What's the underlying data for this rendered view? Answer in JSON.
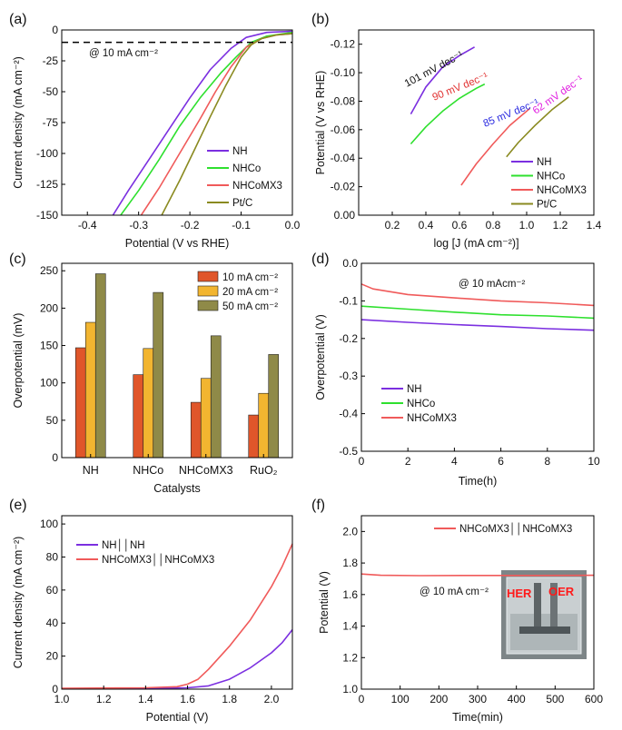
{
  "chart_data": [
    {
      "panel": "(a)",
      "type": "line",
      "xlabel": "Potential (V vs RHE)",
      "ylabel": "Current density (mA cm⁻²)",
      "xlim": [
        -0.45,
        0.0
      ],
      "ylim": [
        -150,
        0
      ],
      "xticks": [
        -0.4,
        -0.3,
        -0.2,
        -0.1,
        0.0
      ],
      "xtick_labels": [
        "-0.4",
        "-0.3",
        "-0.2",
        "-0.1",
        "0.0"
      ],
      "yticks": [
        -25,
        -50,
        -75,
        -100,
        -125,
        -150
      ],
      "ytick_labels": [
        "-25",
        "-50",
        "-75",
        "-100",
        "-125",
        "-150"
      ],
      "annotation": "@ 10 mA cm⁻²",
      "reference_line": {
        "y": -10,
        "style": "dashed",
        "color": "#000000"
      },
      "legend_position": "bottom-right",
      "series": [
        {
          "name": "NH",
          "color": "#7b2fe0",
          "points": [
            [
              -0.35,
              -150
            ],
            [
              -0.32,
              -130
            ],
            [
              -0.28,
              -105
            ],
            [
              -0.24,
              -80
            ],
            [
              -0.2,
              -55
            ],
            [
              -0.16,
              -32
            ],
            [
              -0.12,
              -15
            ],
            [
              -0.09,
              -6
            ],
            [
              -0.05,
              -2
            ],
            [
              0.0,
              -1
            ]
          ]
        },
        {
          "name": "NHCo",
          "color": "#2ee02e",
          "points": [
            [
              -0.335,
              -150
            ],
            [
              -0.3,
              -130
            ],
            [
              -0.26,
              -105
            ],
            [
              -0.22,
              -78
            ],
            [
              -0.18,
              -55
            ],
            [
              -0.14,
              -35
            ],
            [
              -0.11,
              -22
            ],
            [
              -0.08,
              -10
            ],
            [
              -0.05,
              -5
            ],
            [
              0.0,
              -2
            ]
          ]
        },
        {
          "name": "NHCoMX3",
          "color": "#f05a5a",
          "points": [
            [
              -0.295,
              -150
            ],
            [
              -0.26,
              -128
            ],
            [
              -0.22,
              -100
            ],
            [
              -0.18,
              -72
            ],
            [
              -0.15,
              -50
            ],
            [
              -0.12,
              -30
            ],
            [
              -0.09,
              -14
            ],
            [
              -0.06,
              -7
            ],
            [
              -0.03,
              -4
            ],
            [
              0.0,
              -3
            ]
          ]
        },
        {
          "name": "Pt/C",
          "color": "#8a8a20",
          "points": [
            [
              -0.255,
              -150
            ],
            [
              -0.22,
              -122
            ],
            [
              -0.19,
              -96
            ],
            [
              -0.16,
              -70
            ],
            [
              -0.13,
              -45
            ],
            [
              -0.1,
              -22
            ],
            [
              -0.08,
              -12
            ],
            [
              -0.06,
              -7
            ],
            [
              -0.03,
              -4
            ],
            [
              0.0,
              -3
            ]
          ]
        }
      ]
    },
    {
      "panel": "(b)",
      "type": "line",
      "xlabel": "log [J (mA cm⁻²)]",
      "ylabel": "Potential (V vs RHE)",
      "xlim": [
        0.0,
        1.4
      ],
      "ylim": [
        0.0,
        -0.13
      ],
      "xticks": [
        0.2,
        0.4,
        0.6,
        0.8,
        1.0,
        1.2,
        1.4
      ],
      "xtick_labels": [
        "0.2",
        "0.4",
        "0.6",
        "0.8",
        "1.0",
        "1.2",
        "1.4"
      ],
      "yticks": [
        0.0,
        -0.02,
        -0.04,
        -0.06,
        -0.08,
        -0.1,
        -0.12
      ],
      "ytick_labels": [
        "0.00",
        "-0.02",
        "-0.04",
        "-0.06",
        "-0.08",
        "-0.10",
        "-0.12"
      ],
      "legend_position": "bottom-right",
      "series": [
        {
          "name": "NH",
          "color": "#7b2fe0",
          "tafel_label": "101 mV dec⁻¹",
          "label_color": "#111111",
          "points": [
            [
              0.31,
              -0.071
            ],
            [
              0.4,
              -0.09
            ],
            [
              0.5,
              -0.104
            ],
            [
              0.6,
              -0.112
            ],
            [
              0.69,
              -0.118
            ]
          ]
        },
        {
          "name": "NHCo",
          "color": "#2ee02e",
          "tafel_label": "90 mV dec⁻¹",
          "label_color": "#e03030",
          "points": [
            [
              0.31,
              -0.05
            ],
            [
              0.4,
              -0.062
            ],
            [
              0.5,
              -0.073
            ],
            [
              0.6,
              -0.082
            ],
            [
              0.7,
              -0.089
            ],
            [
              0.75,
              -0.092
            ]
          ]
        },
        {
          "name": "NHCoMX3",
          "color": "#f05a5a",
          "tafel_label": "85 mV dec⁻¹",
          "label_color": "#2a2ae0",
          "points": [
            [
              0.61,
              -0.021
            ],
            [
              0.7,
              -0.036
            ],
            [
              0.8,
              -0.05
            ],
            [
              0.9,
              -0.063
            ],
            [
              1.02,
              -0.075
            ]
          ]
        },
        {
          "name": "Pt/C",
          "color": "#8a8a20",
          "tafel_label": "62 mV dec⁻¹",
          "label_color": "#e020e0",
          "points": [
            [
              0.88,
              -0.041
            ],
            [
              0.95,
              -0.051
            ],
            [
              1.05,
              -0.063
            ],
            [
              1.15,
              -0.074
            ],
            [
              1.25,
              -0.083
            ]
          ]
        }
      ]
    },
    {
      "panel": "(c)",
      "type": "bar",
      "xlabel": "Catalysts",
      "ylabel": "Overpotential (mV)",
      "ylim": [
        0,
        260
      ],
      "yticks": [
        0,
        50,
        100,
        150,
        200,
        250
      ],
      "ytick_labels": [
        "0",
        "50",
        "100",
        "150",
        "200",
        "250"
      ],
      "categories": [
        "NH",
        "NHCo",
        "NHCoMX3",
        "RuO₂"
      ],
      "legend_position": "top-right",
      "series": [
        {
          "name": "10 mA cm⁻²",
          "color": "#e0562a",
          "values": [
            147,
            111,
            74,
            57
          ]
        },
        {
          "name": "20 mA cm⁻²",
          "color": "#f2b530",
          "values": [
            181,
            146,
            106,
            86
          ]
        },
        {
          "name": "50 mA cm⁻²",
          "color": "#8f8a48",
          "values": [
            246,
            221,
            163,
            138
          ]
        }
      ]
    },
    {
      "panel": "(d)",
      "type": "line",
      "xlabel": "Time(h)",
      "ylabel": "Overpotential (V)",
      "xlim": [
        0,
        10
      ],
      "ylim": [
        0.0,
        -0.5
      ],
      "xticks": [
        0,
        2,
        4,
        6,
        8,
        10
      ],
      "xtick_labels": [
        "0",
        "2",
        "4",
        "6",
        "8",
        "10"
      ],
      "yticks": [
        0.0,
        -0.1,
        -0.2,
        -0.3,
        -0.4,
        -0.5
      ],
      "ytick_labels": [
        "0.0",
        "-0.1",
        "-0.2",
        "-0.3",
        "-0.4",
        "-0.5"
      ],
      "annotation": "@ 10 mAcm⁻²",
      "legend_position": "bottom-left",
      "series": [
        {
          "name": "NH",
          "color": "#7b2fe0",
          "points": [
            [
              0,
              -0.15
            ],
            [
              2,
              -0.157
            ],
            [
              4,
              -0.163
            ],
            [
              6,
              -0.168
            ],
            [
              8,
              -0.174
            ],
            [
              10,
              -0.178
            ]
          ]
        },
        {
          "name": "NHCo",
          "color": "#2ee02e",
          "points": [
            [
              0,
              -0.114
            ],
            [
              2,
              -0.122
            ],
            [
              4,
              -0.13
            ],
            [
              6,
              -0.137
            ],
            [
              8,
              -0.14
            ],
            [
              10,
              -0.146
            ]
          ]
        },
        {
          "name": "NHCoMX3",
          "color": "#f05a5a",
          "points": [
            [
              0,
              -0.055
            ],
            [
              0.5,
              -0.068
            ],
            [
              2,
              -0.083
            ],
            [
              4,
              -0.092
            ],
            [
              6,
              -0.1
            ],
            [
              8,
              -0.105
            ],
            [
              10,
              -0.112
            ]
          ]
        }
      ]
    },
    {
      "panel": "(e)",
      "type": "line",
      "xlabel": "Potential (V)",
      "ylabel": "Current density (mA cm⁻²)",
      "xlim": [
        1.0,
        2.1
      ],
      "ylim": [
        0,
        105
      ],
      "xticks": [
        1.0,
        1.2,
        1.4,
        1.6,
        1.8,
        2.0
      ],
      "xtick_labels": [
        "1.0",
        "1.2",
        "1.4",
        "1.6",
        "1.8",
        "2.0"
      ],
      "yticks": [
        0,
        20,
        40,
        60,
        80,
        100
      ],
      "ytick_labels": [
        "0",
        "20",
        "40",
        "60",
        "80",
        "100"
      ],
      "legend_position": "top-left",
      "series": [
        {
          "name": "NH││NH",
          "color": "#7b2fe0",
          "points": [
            [
              1.0,
              0.3
            ],
            [
              1.4,
              0.4
            ],
            [
              1.6,
              0.8
            ],
            [
              1.7,
              2.0
            ],
            [
              1.8,
              6
            ],
            [
              1.9,
              13
            ],
            [
              2.0,
              22
            ],
            [
              2.05,
              28
            ],
            [
              2.1,
              36
            ]
          ]
        },
        {
          "name": "NHCoMX3││NHCoMX3",
          "color": "#f05a5a",
          "points": [
            [
              1.0,
              0.5
            ],
            [
              1.4,
              0.8
            ],
            [
              1.55,
              1.5
            ],
            [
              1.6,
              3
            ],
            [
              1.65,
              6
            ],
            [
              1.7,
              12
            ],
            [
              1.8,
              26
            ],
            [
              1.9,
              42
            ],
            [
              2.0,
              62
            ],
            [
              2.05,
              74
            ],
            [
              2.1,
              88
            ]
          ]
        }
      ]
    },
    {
      "panel": "(f)",
      "type": "line",
      "xlabel": "Time(min)",
      "ylabel": "Potential (V)",
      "xlim": [
        0,
        600
      ],
      "ylim": [
        1.0,
        2.1
      ],
      "xticks": [
        0,
        100,
        200,
        300,
        400,
        500,
        600
      ],
      "xtick_labels": [
        "0",
        "100",
        "200",
        "300",
        "400",
        "500",
        "600"
      ],
      "yticks": [
        1.0,
        1.2,
        1.4,
        1.6,
        1.8,
        2.0
      ],
      "ytick_labels": [
        "1.0",
        "1.2",
        "1.4",
        "1.6",
        "1.8",
        "2.0"
      ],
      "annotation": "@ 10 mA cm⁻²",
      "legend_position": "top-right",
      "photo_labels": [
        "HER",
        "OER"
      ],
      "series": [
        {
          "name": "NHCoMX3││NHCoMX3",
          "color": "#f05a5a",
          "points": [
            [
              0,
              1.73
            ],
            [
              50,
              1.722
            ],
            [
              150,
              1.72
            ],
            [
              300,
              1.721
            ],
            [
              450,
              1.721
            ],
            [
              600,
              1.722
            ]
          ]
        }
      ]
    }
  ]
}
